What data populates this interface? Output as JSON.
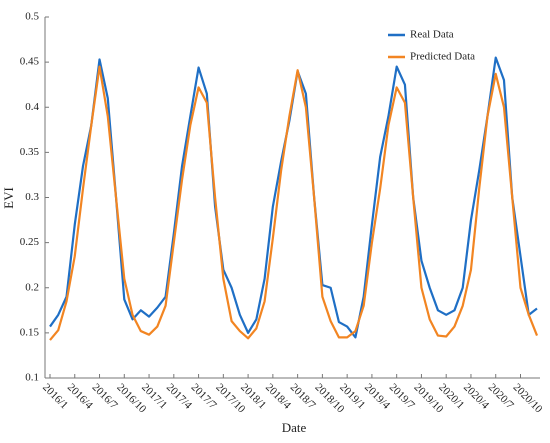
{
  "chart_data": {
    "type": "line",
    "xlabel": "Date",
    "ylabel": "EVI",
    "categories": [
      "2016/1",
      null,
      null,
      "2016/4",
      null,
      null,
      "2016/7",
      null,
      null,
      "2016/10",
      null,
      null,
      "2017/1",
      null,
      null,
      "2017/4",
      null,
      null,
      "2017/7",
      null,
      null,
      "2017/10",
      null,
      null,
      "2018/1",
      null,
      null,
      "2018/4",
      null,
      null,
      "2018/7",
      null,
      null,
      "2018/10",
      null,
      null,
      "2019/1",
      null,
      null,
      "2019/4",
      null,
      null,
      "2019/7",
      null,
      null,
      "2019/10",
      null,
      null,
      "2020/1",
      null,
      null,
      "2020/4",
      null,
      null,
      "2020/7",
      null,
      null,
      "2020/10",
      null,
      null
    ],
    "series": [
      {
        "name": "Real Data",
        "color": "#1f6fc5",
        "values": [
          0.157,
          0.17,
          0.19,
          0.27,
          0.335,
          0.38,
          0.453,
          0.41,
          0.3,
          0.187,
          0.165,
          0.175,
          0.168,
          0.178,
          0.19,
          0.26,
          0.335,
          0.39,
          0.444,
          0.415,
          0.29,
          0.22,
          0.2,
          0.17,
          0.15,
          0.165,
          0.21,
          0.29,
          0.34,
          0.385,
          0.44,
          0.415,
          0.3,
          0.203,
          0.2,
          0.162,
          0.157,
          0.145,
          0.19,
          0.27,
          0.345,
          0.39,
          0.445,
          0.425,
          0.3,
          0.23,
          0.2,
          0.175,
          0.17,
          0.175,
          0.2,
          0.275,
          0.33,
          0.39,
          0.455,
          0.43,
          0.3,
          0.235,
          0.17,
          0.177
        ]
      },
      {
        "name": "Predicted Data",
        "color": "#f28522",
        "values": [
          0.142,
          0.153,
          0.185,
          0.235,
          0.31,
          0.38,
          0.445,
          0.39,
          0.3,
          0.21,
          0.17,
          0.152,
          0.148,
          0.157,
          0.18,
          0.25,
          0.32,
          0.38,
          0.422,
          0.405,
          0.3,
          0.21,
          0.163,
          0.152,
          0.144,
          0.155,
          0.185,
          0.255,
          0.33,
          0.39,
          0.441,
          0.4,
          0.3,
          0.19,
          0.163,
          0.145,
          0.145,
          0.152,
          0.18,
          0.25,
          0.31,
          0.38,
          0.422,
          0.405,
          0.3,
          0.2,
          0.165,
          0.147,
          0.146,
          0.157,
          0.18,
          0.22,
          0.31,
          0.39,
          0.437,
          0.4,
          0.3,
          0.2,
          0.17,
          0.147
        ]
      }
    ],
    "ylim": [
      0.1,
      0.5
    ],
    "yticks": [
      0.1,
      0.15,
      0.2,
      0.25,
      0.3,
      0.35,
      0.4,
      0.45,
      0.5
    ],
    "grid": false
  }
}
